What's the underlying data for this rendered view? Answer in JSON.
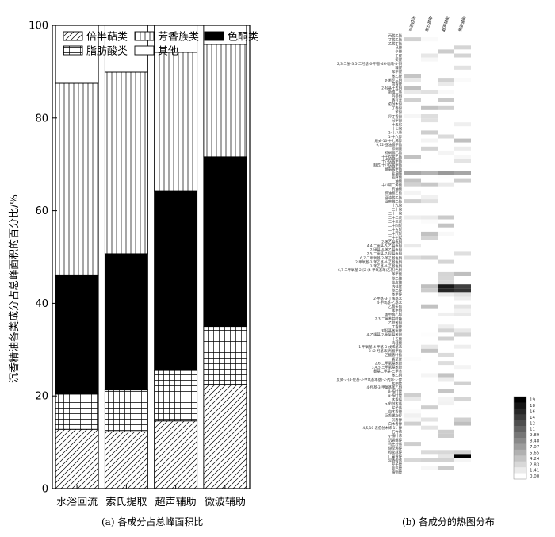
{
  "chart_data": [
    {
      "type": "bar",
      "stacked": true,
      "categories": [
        "水浴回流",
        "索氏提取",
        "超声辅助",
        "微波辅助"
      ],
      "ylabel": "沉香精油各类成分占总峰面积的百分比/%",
      "ylim": [
        0,
        100
      ],
      "yticks": [
        0,
        20,
        40,
        60,
        80,
        100
      ],
      "grid": false,
      "legend_position": "top",
      "series": [
        {
          "name": "倍半萜类",
          "pattern": "diagonal",
          "values": [
            12.8,
            12.3,
            14.6,
            22.5
          ]
        },
        {
          "name": "脂肪酸类",
          "pattern": "grid",
          "values": [
            7.6,
            9.0,
            10.9,
            12.5
          ]
        },
        {
          "name": "色酮类",
          "pattern": "solid-black",
          "values": [
            25.6,
            29.4,
            38.7,
            36.6
          ]
        },
        {
          "name": "芳香族类",
          "pattern": "vertical",
          "values": [
            41.5,
            39.2,
            30.0,
            24.3
          ]
        },
        {
          "name": "其他",
          "pattern": "white",
          "values": [
            12.5,
            10.1,
            5.8,
            4.1
          ]
        }
      ],
      "legend_order": [
        "倍半萜类",
        "芳香族类",
        "色酮类",
        "脂肪酸类",
        "其他"
      ],
      "caption": "(a) 各成分占总峰面积比"
    },
    {
      "type": "heatmap",
      "x": [
        "水浴回流",
        "索氏提取",
        "超声辅助",
        "微波辅助"
      ],
      "y": [
        "丙酸乙酯",
        "丁酸乙酯",
        "乙酸丁酯",
        "己醛",
        "辛醛",
        "壬醛",
        "癸醛",
        "2,3-二氢-3,5-二羟基-6-甲基-4H-吡喃-4-酮",
        "糠醛",
        "苯甲醛",
        "苯乙醛",
        "β-紫罗兰酮",
        "茴香醛",
        "2-羟基十五酮",
        "新植二烯",
        "丹参酮",
        "香豆素",
        "愈创木酚",
        "丁香酚",
        "苯酚",
        "异丁香酚",
        "间甲酚",
        "十五烷",
        "十七烷",
        "1-十八烯",
        "1-十六醇",
        "顺式-10-十七烯醇",
        "9,12-亚油酸甲酯",
        "棕榈酸",
        "棕榈酸乙酯",
        "十七烷酸乙酯",
        "十六烷酸甲酯",
        "顺式-十八烷酸甲酯",
        "硬脂酸甲酯",
        "亚油酸",
        "亚麻酸",
        "油酸",
        "十八碳二烯酸",
        "反油酸",
        "反油酸乙酯",
        "亚油酸乙酯",
        "亚麻酸乙酯",
        "十九烷",
        "二十烷",
        "二十一烷",
        "二十二烷",
        "二十三烷",
        "二十四烷",
        "二十五烷",
        "二十六烷",
        "二十七烷",
        "2-苯乙基色酮",
        "4,4-二甲基-5-乙基色酮",
        "2-甲基-4-苯乙基色酮",
        "2,5-二甲基-7-羟基色酮",
        "6,7-二甲氧基-2-苯乙基色酮",
        "2-甲氧基-2-苯乙基-4-乙基色酮",
        "2-苯乙基-4-乙基色酮",
        "6,7-二甲氧基-2-[2-(4-甲氧基苯)乙基]色酮",
        "苯甲酸",
        "苯乙酸",
        "桂皮酸",
        "肉桂醛",
        "苯乙醇",
        "苯甲醇",
        "2-甲基-3-丁烯基苯",
        "4-甲氧基-乙基苯",
        "乙酸苄酯",
        "苯甲酮",
        "苯甲酸乙酯",
        "2,3-二氢苯并呋喃",
        "乙酰苯酮",
        "丁香醛",
        "对羟基苯甲醛",
        "4-乙烯基-2-甲氧基苯酚",
        "十五酸",
        "肉桂酸",
        "1-甲氧基-4-甲基-3-戊烯基苯",
        "3-(2-羟基苯)丙酸甲酯",
        "乙酸香叶酯",
        "香草醛",
        "2,6-二甲氧基苯酚",
        "3,4,5-三甲氧基苯酚",
        "氨基二甲基-三甲苯",
        "苯乙酮",
        "反式-3-(4-羟基-3-甲氧基苯基)-2-丙烯-1-醇",
        "松柏醇",
        "4-羟基-3-甲氧基苯乙酮",
        "β-桉叶醇",
        "α-桉叶醇",
        "木香醇",
        "α-愈创木烯",
        "芹子烯",
        "白木香醛",
        "沉香螺旋醇",
        "沉香醇",
        "白木香醇",
        "4,5,10-表愈创木烯-11-醇",
        "石竹烯",
        "γ-桉叶烯",
        "沉香螺醇",
        "马兜铃烯",
        "缬草烯醇",
        "橙花叔醇",
        "广藿香醇",
        "异香橙烯",
        "芹子醇",
        "斯巴醇",
        "植物醇"
      ],
      "colorbar_ticks": [
        "0.00",
        "1.41",
        "2.83",
        "4.24",
        "5.65",
        "7.07",
        "8.48",
        "9.89",
        "11",
        "12",
        "14",
        "16",
        "18",
        "19"
      ],
      "zlim": [
        0,
        19
      ],
      "caption": "(b) 各成分的热图分布"
    }
  ]
}
